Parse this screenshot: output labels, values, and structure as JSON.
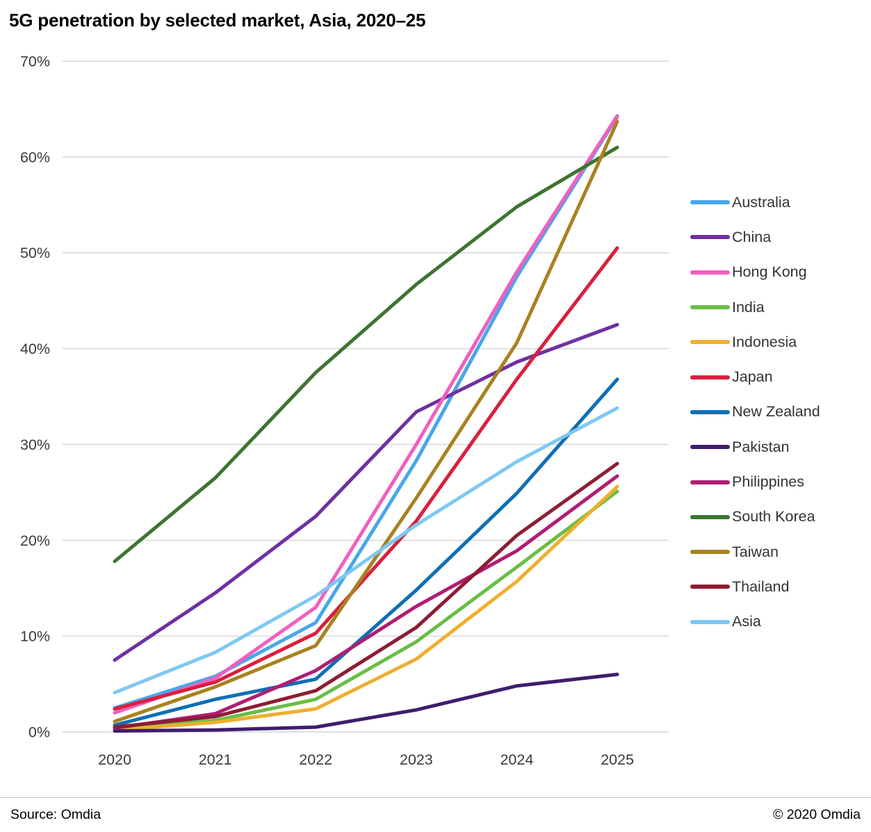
{
  "title": "5G penetration by selected market, Asia, 2020–25",
  "footer": {
    "source": "Source: Omdia",
    "copyright": "© 2020 Omdia"
  },
  "chart_data": {
    "type": "line",
    "title": "5G penetration by selected market, Asia, 2020–25",
    "xlabel": "",
    "ylabel": "",
    "categories": [
      "2020",
      "2021",
      "2022",
      "2023",
      "2024",
      "2025"
    ],
    "ylim": [
      0,
      70
    ],
    "ytick_step": 10,
    "yticks": [
      "0%",
      "10%",
      "20%",
      "30%",
      "40%",
      "50%",
      "60%",
      "70%"
    ],
    "grid": "horizontal",
    "legend_position": "right",
    "grid_color": "#d4d4d4",
    "series": [
      {
        "name": "Australia",
        "color": "#47a7ea",
        "values": [
          2.5,
          5.8,
          11.4,
          28.3,
          47.5,
          64.2
        ]
      },
      {
        "name": "China",
        "color": "#7030a0",
        "values": [
          7.5,
          14.5,
          22.5,
          33.4,
          38.6,
          42.5
        ]
      },
      {
        "name": "Hong Kong",
        "color": "#f060be",
        "values": [
          2.0,
          5.6,
          13.0,
          30.0,
          48.0,
          64.3
        ]
      },
      {
        "name": "India",
        "color": "#6abd45",
        "values": [
          0.3,
          1.2,
          3.4,
          9.4,
          17.2,
          25.1
        ]
      },
      {
        "name": "Indonesia",
        "color": "#efaf2e",
        "values": [
          0.2,
          1.0,
          2.4,
          7.6,
          15.7,
          25.6
        ]
      },
      {
        "name": "Japan",
        "color": "#d91f3e",
        "values": [
          2.4,
          5.2,
          10.3,
          22.0,
          36.8,
          50.5
        ]
      },
      {
        "name": "New Zealand",
        "color": "#0f6fb5",
        "values": [
          0.7,
          3.4,
          5.5,
          14.8,
          24.9,
          36.8
        ]
      },
      {
        "name": "Pakistan",
        "color": "#3f1d6d",
        "values": [
          0.1,
          0.2,
          0.5,
          2.3,
          4.8,
          6.0
        ]
      },
      {
        "name": "Philippines",
        "color": "#b01d74",
        "values": [
          0.4,
          1.9,
          6.4,
          13.1,
          18.9,
          26.7
        ]
      },
      {
        "name": "South Korea",
        "color": "#3e7430",
        "values": [
          17.8,
          26.5,
          37.5,
          46.7,
          54.8,
          61.0
        ]
      },
      {
        "name": "Taiwan",
        "color": "#a8821f",
        "values": [
          1.1,
          4.7,
          9.0,
          24.4,
          40.6,
          63.7
        ]
      },
      {
        "name": "Thailand",
        "color": "#8c1d33",
        "values": [
          0.5,
          1.6,
          4.3,
          10.9,
          20.5,
          28.0
        ]
      },
      {
        "name": "Asia",
        "color": "#7ec8f3",
        "values": [
          4.1,
          8.3,
          14.2,
          21.6,
          28.2,
          33.8
        ]
      }
    ]
  }
}
